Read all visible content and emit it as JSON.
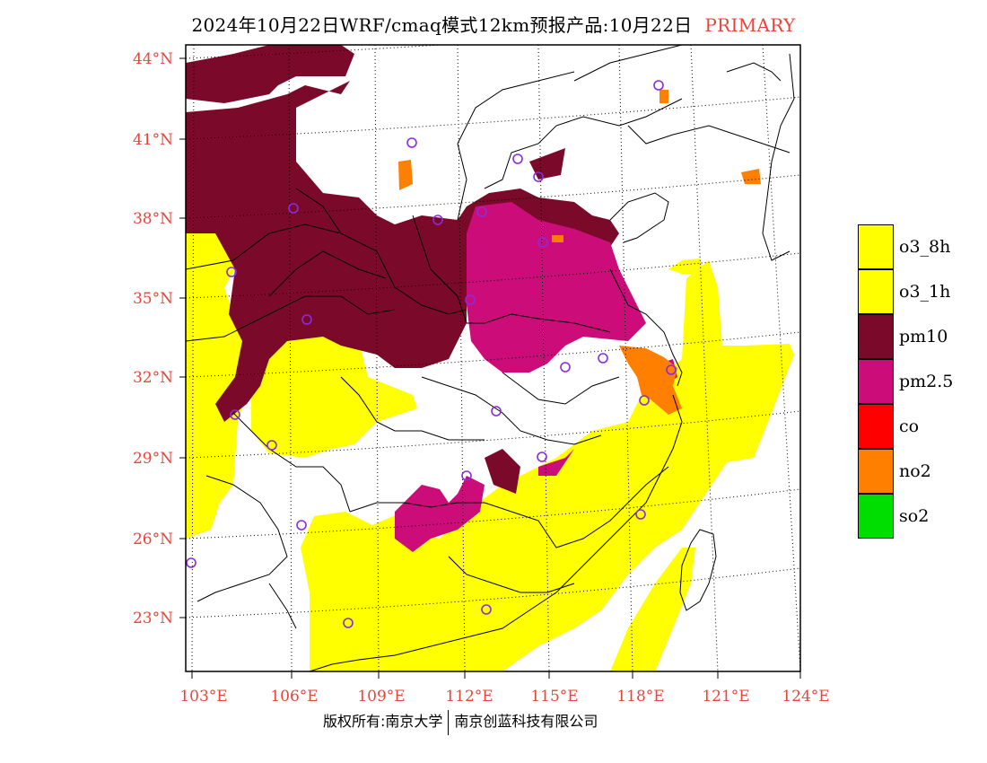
{
  "title": {
    "main": "2024年10月22日WRF/cmaq模式12km预报产品:10月22日",
    "tag": "PRIMARY"
  },
  "credits": {
    "left": "版权所有:南京大学",
    "right": "南京创蓝科技有限公司"
  },
  "lat_labels": [
    "44°N",
    "41°N",
    "38°N",
    "35°N",
    "32°N",
    "29°N",
    "26°N",
    "23°N"
  ],
  "lon_labels": [
    "103°E",
    "106°E",
    "109°E",
    "112°E",
    "115°E",
    "118°E",
    "121°E",
    "124°E"
  ],
  "legend": [
    {
      "label": "o3_8h",
      "color": "#ffff00"
    },
    {
      "label": "o3_1h",
      "color": "#ffff00"
    },
    {
      "label": "pm10",
      "color": "#7b0a2a"
    },
    {
      "label": "pm2.5",
      "color": "#cc0c78"
    },
    {
      "label": "co",
      "color": "#ff0000"
    },
    {
      "label": "no2",
      "color": "#ff7f00"
    },
    {
      "label": "so2",
      "color": "#00dd00"
    }
  ],
  "colors": {
    "o3": "#ffff00",
    "pm10": "#7b0a2a",
    "pm25": "#cc0c78",
    "no2": "#ff7f00",
    "axis_text": "#e8443a",
    "station_marker": "#8a2be2"
  }
}
